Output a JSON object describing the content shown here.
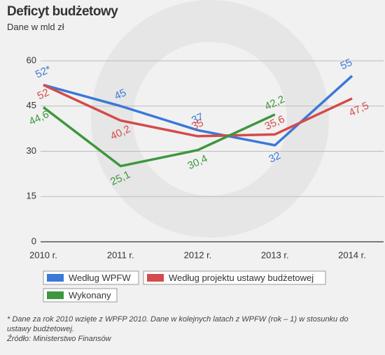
{
  "chart_data": {
    "type": "line",
    "title": "Deficyt budżetowy",
    "subtitle": "Dane w mld zł",
    "categories": [
      "2010 r.",
      "2011 r.",
      "2012 r.",
      "2013 r.",
      "2014 r."
    ],
    "series": [
      {
        "name": "Według WPFW",
        "color": "#3b78d8",
        "values": [
          52,
          45,
          37,
          32,
          55
        ],
        "value_labels": [
          "52*",
          "45",
          "37",
          "32",
          "55"
        ]
      },
      {
        "name": "Według projektu ustawy budżetowej",
        "color": "#d54a4a",
        "values": [
          52,
          40.2,
          35,
          35.6,
          47.5
        ],
        "value_labels": [
          "52",
          "40,2",
          "35",
          "35,6",
          "47,5"
        ]
      },
      {
        "name": "Wykonany",
        "color": "#3e973e",
        "values": [
          44.6,
          25.1,
          30.4,
          42.2,
          null
        ],
        "value_labels": [
          "44,6",
          "25,1",
          "30,4",
          "42,2",
          null
        ]
      }
    ],
    "ylim": [
      0,
      60
    ],
    "yticks": [
      0,
      15,
      30,
      45,
      60
    ],
    "grid": true,
    "footnote": "* Dane za rok 2010 wzięte z WPFP 2010. Dane w kolejnych latach z WPFW (rok – 1) w stosunku do ustawy budżetowej.",
    "source": "Źródło: Ministerstwo Finansów"
  }
}
